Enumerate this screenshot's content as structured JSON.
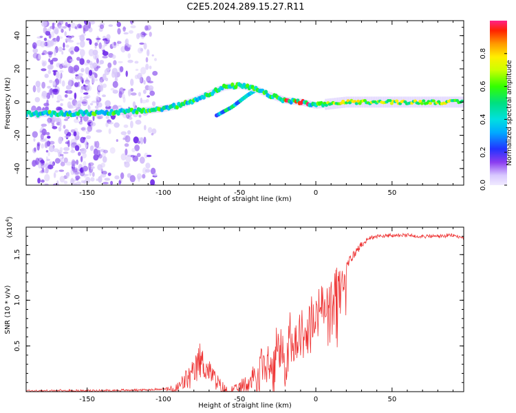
{
  "title": "C2E5.2024.289.15.27.R11",
  "colors": {
    "snr_line": "#ee3333",
    "spectro_low": "#8a5cf0",
    "spectro_high": "#ff2020"
  },
  "chart_data": [
    {
      "type": "heatmap",
      "name": "spectrogram",
      "xlabel": "Height of straight line (km)",
      "ylabel": "Frequency (Hz)",
      "xlim": [
        -190,
        97
      ],
      "ylim": [
        -50,
        49
      ],
      "xticks": [
        "-150",
        "-100",
        "-50",
        "0",
        "50"
      ],
      "xtick_values": [
        -150,
        -100,
        -50,
        0,
        50
      ],
      "yticks": [
        "-40",
        "-20",
        "0",
        "20",
        "40"
      ],
      "ytick_values": [
        -40,
        -20,
        0,
        20,
        40
      ],
      "colorbar": {
        "label": "Normalized spectral amplitude",
        "range": [
          0,
          1
        ],
        "ticks": [
          "0.0",
          "0.2",
          "0.4",
          "0.6",
          "0.8"
        ],
        "tick_values": [
          0.0,
          0.2,
          0.4,
          0.6,
          0.8
        ]
      },
      "ridge": {
        "x": [
          -190,
          -160,
          -130,
          -110,
          -100,
          -90,
          -80,
          -70,
          -60,
          -50,
          -45,
          -40,
          -30,
          -20,
          -10,
          0,
          10,
          20,
          50,
          97
        ],
        "y": [
          -7,
          -7,
          -6,
          -5,
          -4,
          -2,
          1,
          5,
          9,
          10,
          9,
          8,
          4,
          1,
          0,
          -2,
          -1,
          0,
          0,
          0
        ]
      },
      "secondary_branch": {
        "x": [
          -65,
          -55,
          -45,
          -38
        ],
        "y": [
          -8,
          -3,
          4,
          8
        ]
      }
    },
    {
      "type": "line",
      "name": "snr",
      "xlabel": "Height of straight line (km)",
      "ylabel": "SNR (10 * v/v)",
      "scale_label": "(x10",
      "scale_exponent": "4",
      "xlim": [
        -190,
        97
      ],
      "ylim": [
        0,
        1.8
      ],
      "xticks": [
        "-150",
        "-100",
        "-50",
        "0",
        "50"
      ],
      "xtick_values": [
        -150,
        -100,
        -50,
        0,
        50
      ],
      "yticks": [
        "0.5",
        "1.0",
        "1.5"
      ],
      "ytick_values": [
        0.5,
        1.0,
        1.5
      ],
      "envelope": {
        "x": [
          -190,
          -150,
          -110,
          -100,
          -92,
          -85,
          -80,
          -76,
          -72,
          -68,
          -63,
          -58,
          -52,
          -45,
          -40,
          -35,
          -30,
          -25,
          -20,
          -15,
          -10,
          -5,
          0,
          5,
          10,
          15,
          20,
          25,
          30,
          35,
          40,
          50,
          60,
          70,
          80,
          90,
          97
        ],
        "y": [
          0.02,
          0.02,
          0.03,
          0.04,
          0.08,
          0.25,
          0.35,
          0.55,
          0.4,
          0.3,
          0.15,
          0.06,
          0.08,
          0.2,
          0.4,
          0.5,
          0.55,
          0.75,
          0.85,
          0.9,
          1.0,
          1.05,
          1.1,
          1.2,
          1.3,
          1.4,
          1.45,
          1.55,
          1.65,
          1.7,
          1.72,
          1.73,
          1.73,
          1.72,
          1.72,
          1.73,
          1.7
        ]
      },
      "noise": {
        "x": [
          -190,
          -100,
          -92,
          -85,
          -76,
          -70,
          -60,
          -52,
          -45,
          -40,
          -30,
          -20,
          -10,
          0,
          10,
          18,
          25,
          35,
          97
        ],
        "y": [
          0.01,
          0.01,
          0.06,
          0.12,
          0.2,
          0.12,
          0.08,
          0.05,
          0.12,
          0.3,
          0.35,
          0.4,
          0.3,
          0.25,
          0.22,
          0.1,
          0.05,
          0.02,
          0.02
        ]
      }
    }
  ]
}
